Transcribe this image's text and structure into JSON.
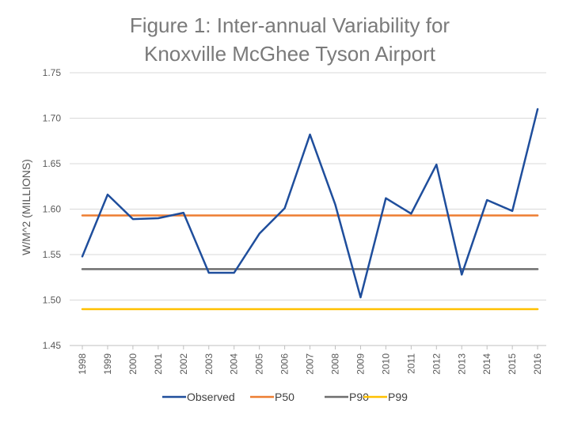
{
  "chart_data": {
    "type": "line",
    "title": [
      "Figure 1: Inter-annual Variability for",
      "Knoxville McGhee Tyson Airport"
    ],
    "xlabel": "",
    "ylabel": "W/M^2 (MILLIONS)",
    "ylim": [
      1.45,
      1.75
    ],
    "yticks": [
      "1.45",
      "1.50",
      "1.55",
      "1.60",
      "1.65",
      "1.70",
      "1.75"
    ],
    "ytick_values": [
      1.45,
      1.5,
      1.55,
      1.6,
      1.65,
      1.7,
      1.75
    ],
    "categories": [
      "1998",
      "1999",
      "2000",
      "2001",
      "2002",
      "2003",
      "2004",
      "2005",
      "2006",
      "2007",
      "2008",
      "2009",
      "2010",
      "2011",
      "2012",
      "2013",
      "2014",
      "2015",
      "2016"
    ],
    "series": [
      {
        "name": "Observed",
        "color": "#1f4e9c",
        "values": [
          1.548,
          1.616,
          1.589,
          1.59,
          1.596,
          1.53,
          1.53,
          1.573,
          1.601,
          1.682,
          1.605,
          1.503,
          1.612,
          1.595,
          1.649,
          1.528,
          1.61,
          1.598,
          1.71
        ]
      },
      {
        "name": "P50",
        "color": "#ed7d31",
        "values": [
          1.593,
          1.593,
          1.593,
          1.593,
          1.593,
          1.593,
          1.593,
          1.593,
          1.593,
          1.593,
          1.593,
          1.593,
          1.593,
          1.593,
          1.593,
          1.593,
          1.593,
          1.593,
          1.593
        ]
      },
      {
        "name": "P90",
        "color": "#6e6e6e",
        "values": [
          1.534,
          1.534,
          1.534,
          1.534,
          1.534,
          1.534,
          1.534,
          1.534,
          1.534,
          1.534,
          1.534,
          1.534,
          1.534,
          1.534,
          1.534,
          1.534,
          1.534,
          1.534,
          1.534
        ]
      },
      {
        "name": "P99",
        "color": "#ffc000",
        "values": [
          1.49,
          1.49,
          1.49,
          1.49,
          1.49,
          1.49,
          1.49,
          1.49,
          1.49,
          1.49,
          1.49,
          1.49,
          1.49,
          1.49,
          1.49,
          1.49,
          1.49,
          1.49,
          1.49
        ]
      }
    ],
    "grid": true,
    "legend": "bottom"
  }
}
